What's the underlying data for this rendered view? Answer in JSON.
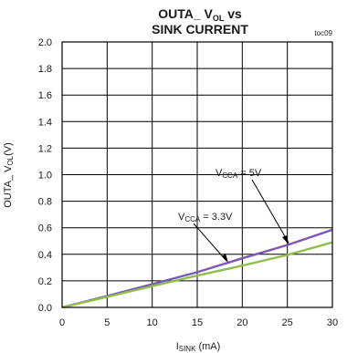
{
  "chart_data": {
    "type": "line",
    "title": {
      "line1_main": "OUTA_ V",
      "line1_sub": "OL",
      "line1_tail": " vs",
      "line2": "SINK CURRENT"
    },
    "tag": "toc09",
    "xlabel": {
      "main": "I",
      "sub": "SINK",
      "tail": " (mA)"
    },
    "ylabel": {
      "main": "OUTA_ V",
      "sub": "OL",
      "tail": "(V)"
    },
    "xlim": [
      0,
      30
    ],
    "ylim": [
      0,
      2.0
    ],
    "xticks": [
      0,
      5,
      10,
      15,
      20,
      25,
      30
    ],
    "yticks": [
      "0.0",
      "0.2",
      "0.4",
      "0.6",
      "0.8",
      "1.0",
      "1.2",
      "1.4",
      "1.6",
      "1.8",
      "2.0"
    ],
    "grid": true,
    "series": [
      {
        "name": "VCCA = 5V",
        "label": {
          "main": "V",
          "sub": "CCA",
          "tail": " = 5V"
        },
        "color": "#7b57b6",
        "x": [
          0,
          5,
          10,
          15,
          20,
          25,
          30
        ],
        "y": [
          0.0,
          0.085,
          0.175,
          0.265,
          0.37,
          0.47,
          0.585
        ]
      },
      {
        "name": "VCCA = 3.3V",
        "label": {
          "main": "V",
          "sub": "CCA",
          "tail": " = 3.3V"
        },
        "color": "#8fbf4a",
        "x": [
          0,
          5,
          10,
          15,
          20,
          25,
          30
        ],
        "y": [
          0.0,
          0.08,
          0.16,
          0.24,
          0.315,
          0.395,
          0.49
        ]
      }
    ]
  }
}
